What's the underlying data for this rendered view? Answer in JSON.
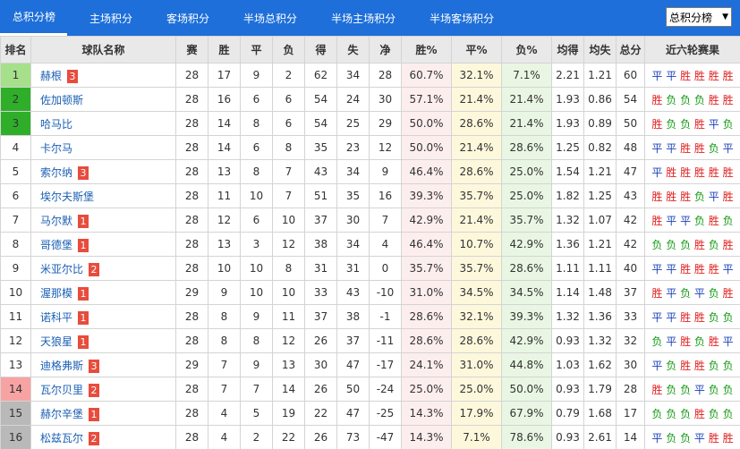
{
  "tabs": [
    {
      "label": "总积分榜",
      "active": true
    },
    {
      "label": "主场积分",
      "active": false
    },
    {
      "label": "客场积分",
      "active": false
    },
    {
      "label": "半场总积分",
      "active": false
    },
    {
      "label": "半场主场积分",
      "active": false
    },
    {
      "label": "半场客场积分",
      "active": false
    }
  ],
  "select": {
    "value": "总积分榜"
  },
  "colors": {
    "tabbar": "#1e6fd9",
    "win": "#e02020",
    "draw": "#1a3fb8",
    "lose": "#169a16"
  },
  "headers": [
    "排名",
    "球队名称",
    "赛",
    "胜",
    "平",
    "负",
    "得",
    "失",
    "净",
    "胜%",
    "平%",
    "负%",
    "均得",
    "均失",
    "总分",
    "近六轮赛果"
  ],
  "rows": [
    {
      "rank": "1",
      "team": "赫根",
      "badge": "3",
      "p": "28",
      "w": "17",
      "d": "9",
      "l": "2",
      "gf": "62",
      "ga": "34",
      "gd": "28",
      "wp": "60.7%",
      "dp": "32.1%",
      "lp": "7.1%",
      "avg_f": "2.21",
      "avg_a": "1.21",
      "pts": "60",
      "recent": [
        "平",
        "平",
        "胜",
        "胜",
        "胜",
        "胜"
      ],
      "zone": "green-light"
    },
    {
      "rank": "2",
      "team": "佐加顿斯",
      "badge": "",
      "p": "28",
      "w": "16",
      "d": "6",
      "l": "6",
      "gf": "54",
      "ga": "24",
      "gd": "30",
      "wp": "57.1%",
      "dp": "21.4%",
      "lp": "21.4%",
      "avg_f": "1.93",
      "avg_a": "0.86",
      "pts": "54",
      "recent": [
        "胜",
        "负",
        "负",
        "负",
        "胜",
        "胜"
      ],
      "zone": "green"
    },
    {
      "rank": "3",
      "team": "哈马比",
      "badge": "",
      "p": "28",
      "w": "14",
      "d": "8",
      "l": "6",
      "gf": "54",
      "ga": "25",
      "gd": "29",
      "wp": "50.0%",
      "dp": "28.6%",
      "lp": "21.4%",
      "avg_f": "1.93",
      "avg_a": "0.89",
      "pts": "50",
      "recent": [
        "胜",
        "负",
        "负",
        "胜",
        "平",
        "负"
      ],
      "zone": "green"
    },
    {
      "rank": "4",
      "team": "卡尔马",
      "badge": "",
      "p": "28",
      "w": "14",
      "d": "6",
      "l": "8",
      "gf": "35",
      "ga": "23",
      "gd": "12",
      "wp": "50.0%",
      "dp": "21.4%",
      "lp": "28.6%",
      "avg_f": "1.25",
      "avg_a": "0.82",
      "pts": "48",
      "recent": [
        "平",
        "平",
        "胜",
        "胜",
        "负",
        "平"
      ],
      "zone": ""
    },
    {
      "rank": "5",
      "team": "索尔纳",
      "badge": "3",
      "p": "28",
      "w": "13",
      "d": "8",
      "l": "7",
      "gf": "43",
      "ga": "34",
      "gd": "9",
      "wp": "46.4%",
      "dp": "28.6%",
      "lp": "25.0%",
      "avg_f": "1.54",
      "avg_a": "1.21",
      "pts": "47",
      "recent": [
        "平",
        "胜",
        "胜",
        "胜",
        "胜",
        "胜"
      ],
      "zone": ""
    },
    {
      "rank": "6",
      "team": "埃尔夫斯堡",
      "badge": "",
      "p": "28",
      "w": "11",
      "d": "10",
      "l": "7",
      "gf": "51",
      "ga": "35",
      "gd": "16",
      "wp": "39.3%",
      "dp": "35.7%",
      "lp": "25.0%",
      "avg_f": "1.82",
      "avg_a": "1.25",
      "pts": "43",
      "recent": [
        "胜",
        "胜",
        "胜",
        "负",
        "平",
        "胜"
      ],
      "zone": ""
    },
    {
      "rank": "7",
      "team": "马尔默",
      "badge": "1",
      "p": "28",
      "w": "12",
      "d": "6",
      "l": "10",
      "gf": "37",
      "ga": "30",
      "gd": "7",
      "wp": "42.9%",
      "dp": "21.4%",
      "lp": "35.7%",
      "avg_f": "1.32",
      "avg_a": "1.07",
      "pts": "42",
      "recent": [
        "胜",
        "平",
        "平",
        "负",
        "胜",
        "负"
      ],
      "zone": ""
    },
    {
      "rank": "8",
      "team": "哥德堡",
      "badge": "1",
      "p": "28",
      "w": "13",
      "d": "3",
      "l": "12",
      "gf": "38",
      "ga": "34",
      "gd": "4",
      "wp": "46.4%",
      "dp": "10.7%",
      "lp": "42.9%",
      "avg_f": "1.36",
      "avg_a": "1.21",
      "pts": "42",
      "recent": [
        "负",
        "负",
        "负",
        "胜",
        "负",
        "胜"
      ],
      "zone": ""
    },
    {
      "rank": "9",
      "team": "米亚尔比",
      "badge": "2",
      "p": "28",
      "w": "10",
      "d": "10",
      "l": "8",
      "gf": "31",
      "ga": "31",
      "gd": "0",
      "wp": "35.7%",
      "dp": "35.7%",
      "lp": "28.6%",
      "avg_f": "1.11",
      "avg_a": "1.11",
      "pts": "40",
      "recent": [
        "平",
        "平",
        "胜",
        "胜",
        "胜",
        "平"
      ],
      "zone": ""
    },
    {
      "rank": "10",
      "team": "渥那模",
      "badge": "1",
      "p": "29",
      "w": "9",
      "d": "10",
      "l": "10",
      "gf": "33",
      "ga": "43",
      "gd": "-10",
      "wp": "31.0%",
      "dp": "34.5%",
      "lp": "34.5%",
      "avg_f": "1.14",
      "avg_a": "1.48",
      "pts": "37",
      "recent": [
        "胜",
        "平",
        "负",
        "平",
        "负",
        "胜"
      ],
      "zone": ""
    },
    {
      "rank": "11",
      "team": "诺科平",
      "badge": "1",
      "p": "28",
      "w": "8",
      "d": "9",
      "l": "11",
      "gf": "37",
      "ga": "38",
      "gd": "-1",
      "wp": "28.6%",
      "dp": "32.1%",
      "lp": "39.3%",
      "avg_f": "1.32",
      "avg_a": "1.36",
      "pts": "33",
      "recent": [
        "平",
        "平",
        "胜",
        "胜",
        "负",
        "负"
      ],
      "zone": ""
    },
    {
      "rank": "12",
      "team": "天狼星",
      "badge": "1",
      "p": "28",
      "w": "8",
      "d": "8",
      "l": "12",
      "gf": "26",
      "ga": "37",
      "gd": "-11",
      "wp": "28.6%",
      "dp": "28.6%",
      "lp": "42.9%",
      "avg_f": "0.93",
      "avg_a": "1.32",
      "pts": "32",
      "recent": [
        "负",
        "平",
        "胜",
        "负",
        "胜",
        "平"
      ],
      "zone": ""
    },
    {
      "rank": "13",
      "team": "迪格弗斯",
      "badge": "3",
      "p": "29",
      "w": "7",
      "d": "9",
      "l": "13",
      "gf": "30",
      "ga": "47",
      "gd": "-17",
      "wp": "24.1%",
      "dp": "31.0%",
      "lp": "44.8%",
      "avg_f": "1.03",
      "avg_a": "1.62",
      "pts": "30",
      "recent": [
        "平",
        "负",
        "胜",
        "胜",
        "负",
        "负"
      ],
      "zone": ""
    },
    {
      "rank": "14",
      "team": "瓦尔贝里",
      "badge": "2",
      "p": "28",
      "w": "7",
      "d": "7",
      "l": "14",
      "gf": "26",
      "ga": "50",
      "gd": "-24",
      "wp": "25.0%",
      "dp": "25.0%",
      "lp": "50.0%",
      "avg_f": "0.93",
      "avg_a": "1.79",
      "pts": "28",
      "recent": [
        "胜",
        "负",
        "负",
        "平",
        "负",
        "负"
      ],
      "zone": "pink"
    },
    {
      "rank": "15",
      "team": "赫尔辛堡",
      "badge": "1",
      "p": "28",
      "w": "4",
      "d": "5",
      "l": "19",
      "gf": "22",
      "ga": "47",
      "gd": "-25",
      "wp": "14.3%",
      "dp": "17.9%",
      "lp": "67.9%",
      "avg_f": "0.79",
      "avg_a": "1.68",
      "pts": "17",
      "recent": [
        "负",
        "负",
        "负",
        "胜",
        "负",
        "负"
      ],
      "zone": "gray"
    },
    {
      "rank": "16",
      "team": "松兹瓦尔",
      "badge": "2",
      "p": "28",
      "w": "4",
      "d": "2",
      "l": "22",
      "gf": "26",
      "ga": "73",
      "gd": "-47",
      "wp": "14.3%",
      "dp": "7.1%",
      "lp": "78.6%",
      "avg_f": "0.93",
      "avg_a": "2.61",
      "pts": "14",
      "recent": [
        "平",
        "负",
        "负",
        "平",
        "胜",
        "胜"
      ],
      "zone": "gray"
    }
  ]
}
